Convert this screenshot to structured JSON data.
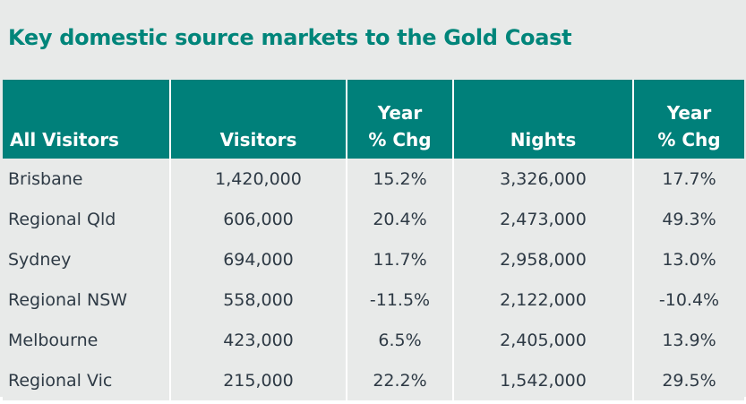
{
  "title": "Key domestic source markets to the Gold Coast",
  "headers": [
    "All Visitors",
    "Visitors",
    "Year\n% Chg",
    "Nights",
    "Year\n% Chg"
  ],
  "header_lines": {
    "year": "Year",
    "pct_chg": "% Chg"
  },
  "rows": [
    [
      "Brisbane",
      "1,420,000",
      "15.2%",
      "3,326,000",
      "17.7%"
    ],
    [
      "Regional Qld",
      "606,000",
      "20.4%",
      "2,473,000",
      "49.3%"
    ],
    [
      "Sydney",
      "694,000",
      "11.7%",
      "2,958,000",
      "13.0%"
    ],
    [
      "Regional NSW",
      "558,000",
      "-11.5%",
      "2,122,000",
      "-10.4%"
    ],
    [
      "Melbourne",
      "423,000",
      "6.5%",
      "2,405,000",
      "13.9%"
    ],
    [
      "Regional Vic",
      "215,000",
      "22.2%",
      "1,542,000",
      "29.5%"
    ]
  ],
  "colors": {
    "accent": "#00807a",
    "background": "#e8eae9",
    "text": "#2e3a45"
  }
}
